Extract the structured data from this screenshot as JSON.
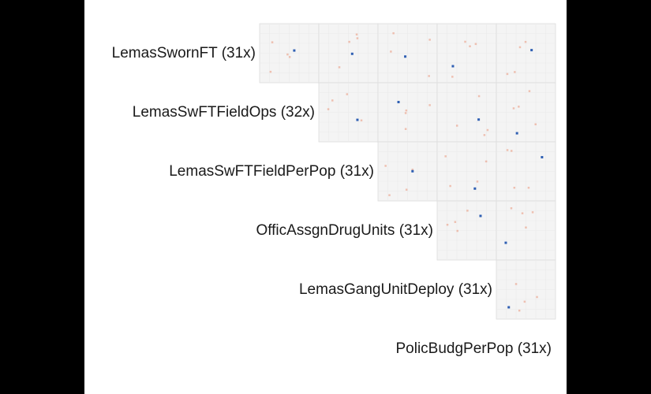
{
  "chart_data": {
    "type": "heatmap",
    "title": "",
    "variables": [
      "LemasSwornFT (31x)",
      "LemasSwFTFieldOps (32x)",
      "LemasSwFTFieldPerPop (31x)",
      "OfficAssgnDrugUnits (31x)",
      "LemasGangUnitDeploy (31x)",
      "PolicBudgPerPop (31x)"
    ],
    "grid": true,
    "colors": {
      "negative": "#e9967a",
      "positive": "#2f5fb3",
      "teal": "#3aa6a6",
      "cell_background": "#f4f4f4",
      "cell_border": "#dddddd"
    }
  }
}
